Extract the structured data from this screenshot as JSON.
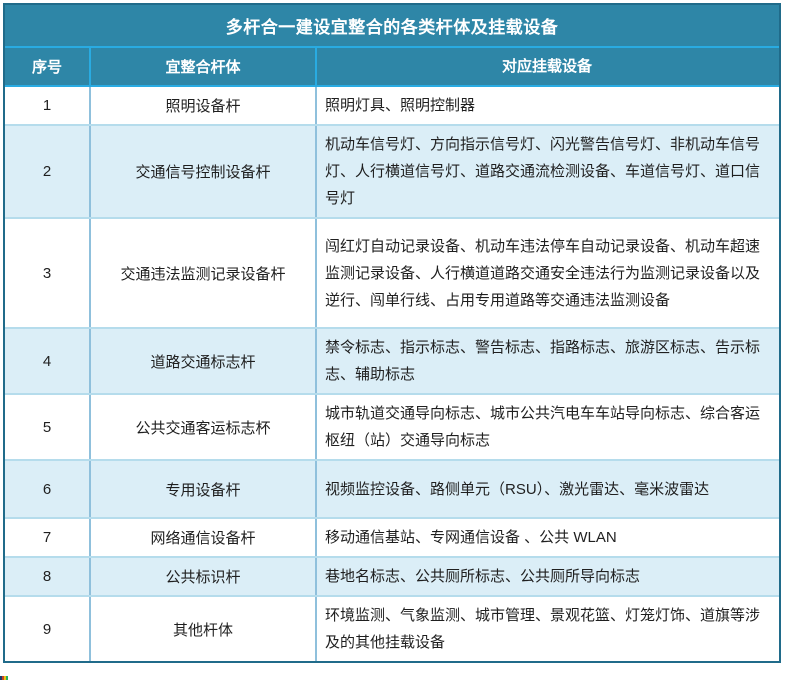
{
  "table": {
    "title": "多杆合一建设宜整合的各类杆体及挂载设备",
    "columns": [
      "序号",
      "宜整合杆体",
      "对应挂载设备"
    ],
    "rows": [
      {
        "no": "1",
        "pole": "照明设备杆",
        "devices": "照明灯具、照明控制器"
      },
      {
        "no": "2",
        "pole": "交通信号控制设备杆",
        "devices": "机动车信号灯、方向指示信号灯、闪光警告信号灯、非机动车信号灯、人行横道信号灯、道路交通流检测设备、车道信号灯、道口信号灯"
      },
      {
        "no": "3",
        "pole": "交通违法监测记录设备杆",
        "devices": "闯红灯自动记录设备、机动车违法停车自动记录设备、机动车超速监测记录设备、人行横道道路交通安全违法行为监测记录设备以及逆行、闯单行线、占用专用道路等交通违法监测设备"
      },
      {
        "no": "4",
        "pole": "道路交通标志杆",
        "devices": "禁令标志、指示标志、警告标志、指路标志、旅游区标志、告示标志、辅助标志"
      },
      {
        "no": "5",
        "pole": "公共交通客运标志杯",
        "devices": "城市轨道交通导向标志、城市公共汽电车车站导向标志、综合客运枢纽（站）交通导向标志"
      },
      {
        "no": "6",
        "pole": "专用设备杆",
        "devices": "视频监控设备、路侧单元（RSU）、激光雷达、毫米波雷达"
      },
      {
        "no": "7",
        "pole": "网络通信设备杆",
        "devices": "移动通信基站、专网通信设备 、公共 WLAN"
      },
      {
        "no": "8",
        "pole": "公共标识杆",
        "devices": "巷地名标志、公共厕所标志、公共厕所导向标志"
      },
      {
        "no": "9",
        "pole": "其他杆体",
        "devices": "环境监测、气象监测、城市管理、景观花篮、灯笼灯饰、道旗等涉及的其他挂载设备"
      }
    ],
    "colors": {
      "header_teal": "#2e86a7",
      "header_divider_cyan": "#29abe2",
      "outer_border": "#206b8a",
      "row_alt_blue": "#dbeef7",
      "row_divider_blue": "#8fc0dc",
      "row_separator": "#b5dcec",
      "header_text": "#ffffff",
      "body_text": "#1f1f1f"
    }
  }
}
